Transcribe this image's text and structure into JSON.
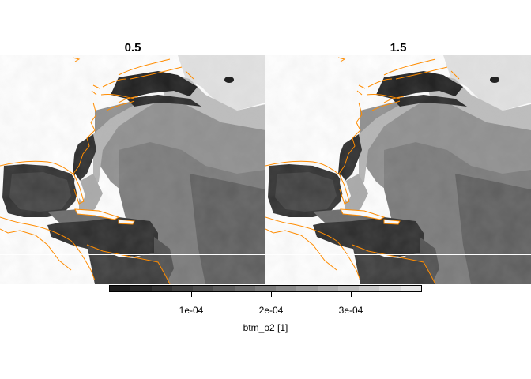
{
  "figure": {
    "panels": [
      {
        "title": "0.5"
      },
      {
        "title": "1.5"
      }
    ]
  },
  "legend": {
    "title": "btm_o2 [1]",
    "ticks": [
      {
        "value": 0.0001,
        "label": "1e-04"
      },
      {
        "value": 0.0002,
        "label": "2e-04"
      },
      {
        "value": 0.0003,
        "label": "3e-04"
      }
    ],
    "range": [
      2e-05,
      0.00039
    ]
  },
  "colors": {
    "coastline": "#ff8c00",
    "land": "#ffffff",
    "colorbar_low": "#1a1a1a",
    "colorbar_high": "#ececec"
  }
}
